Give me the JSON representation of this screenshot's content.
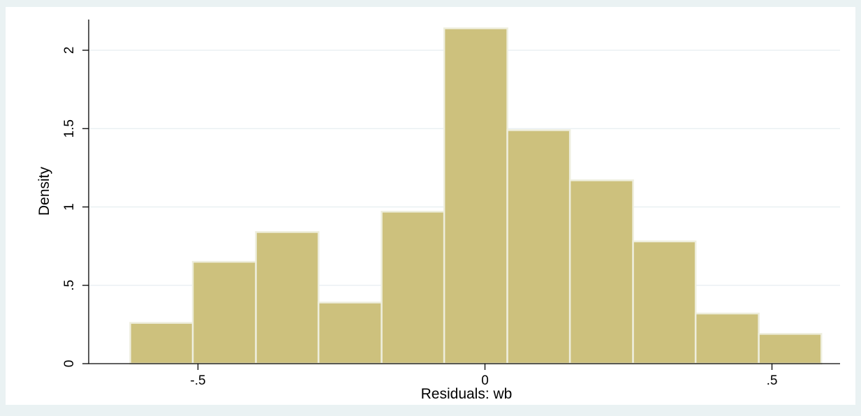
{
  "chart_data": {
    "type": "bar",
    "xlabel": "Residuals:  wb",
    "ylabel": "Density",
    "xlim": [
      -0.7,
      0.6
    ],
    "ylim": [
      0,
      2.2
    ],
    "x_ticks": [
      {
        "value": -0.5,
        "label": "-.5"
      },
      {
        "value": 0,
        "label": "0"
      },
      {
        "value": 0.5,
        "label": ".5"
      }
    ],
    "y_ticks": [
      {
        "value": 0,
        "label": "0"
      },
      {
        "value": 0.5,
        "label": ".5"
      },
      {
        "value": 1,
        "label": "1"
      },
      {
        "value": 1.5,
        "label": "1.5"
      },
      {
        "value": 2,
        "label": "2"
      }
    ],
    "grid": true,
    "bins": [
      {
        "x0": -0.618,
        "x1": -0.509,
        "density": 0.26
      },
      {
        "x0": -0.509,
        "x1": -0.399,
        "density": 0.65
      },
      {
        "x0": -0.399,
        "x1": -0.29,
        "density": 0.84
      },
      {
        "x0": -0.29,
        "x1": -0.18,
        "density": 0.39
      },
      {
        "x0": -0.18,
        "x1": -0.071,
        "density": 0.97
      },
      {
        "x0": -0.071,
        "x1": 0.039,
        "density": 2.14
      },
      {
        "x0": 0.039,
        "x1": 0.148,
        "density": 1.49
      },
      {
        "x0": 0.148,
        "x1": 0.258,
        "density": 1.17
      },
      {
        "x0": 0.258,
        "x1": 0.367,
        "density": 0.78
      },
      {
        "x0": 0.367,
        "x1": 0.477,
        "density": 0.32
      },
      {
        "x0": 0.477,
        "x1": 0.586,
        "density": 0.19
      }
    ],
    "colors": {
      "outer_background": "#eaf2f3",
      "plot_background": "#ffffff",
      "bar_fill": "#cdc17d",
      "bar_edge": "#eeeedd",
      "grid": "#e6eef0",
      "axis": "#000000"
    }
  }
}
